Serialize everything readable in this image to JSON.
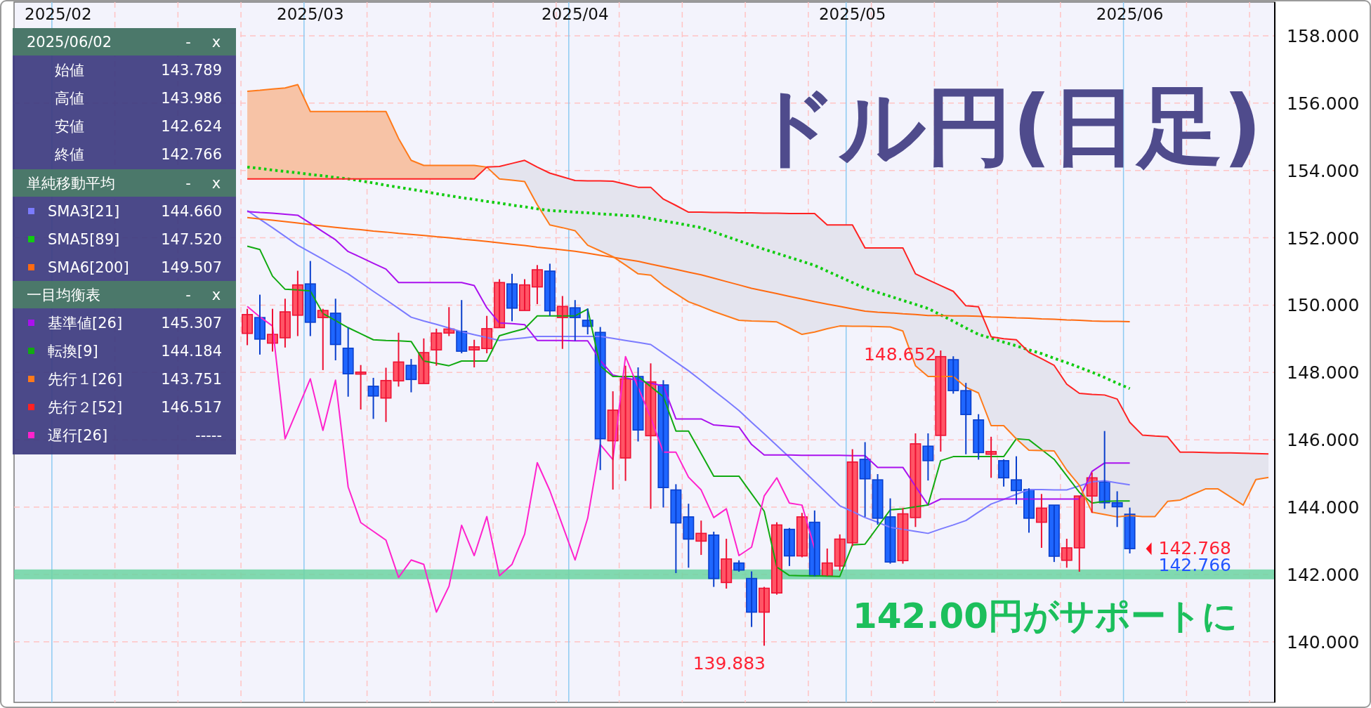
{
  "chart_data": {
    "type": "candlestick",
    "title": "ドル円(日足)",
    "categories": [
      null,
      null,
      null,
      "2025/02",
      null,
      null,
      null,
      null,
      null,
      null,
      null,
      null,
      null,
      null,
      null,
      null,
      null,
      null,
      null,
      null,
      null,
      null,
      null,
      "2025/03",
      null,
      null,
      null,
      null,
      null,
      null,
      null,
      null,
      null,
      null,
      null,
      null,
      null,
      null,
      null,
      null,
      null,
      null,
      null,
      null,
      "2025/04",
      null,
      null,
      null,
      null,
      null,
      null,
      null,
      null,
      null,
      null,
      null,
      null,
      null,
      null,
      null,
      null,
      null,
      null,
      null,
      null,
      null,
      "2025/05",
      null,
      null,
      null,
      null,
      null,
      null,
      null,
      null,
      null,
      null,
      null,
      null,
      null,
      null,
      null,
      null,
      null,
      null,
      null,
      null,
      null,
      "2025/06",
      null,
      null,
      null,
      null,
      null,
      null,
      null,
      null,
      null,
      null,
      null
    ],
    "ohlc": [
      null,
      null,
      null,
      null,
      null,
      null,
      null,
      null,
      null,
      null,
      null,
      null,
      null,
      null,
      null,
      null,
      null,
      null,
      [
        149.16,
        149.89,
        148.81,
        149.72
      ],
      [
        149.63,
        150.31,
        148.53,
        148.99
      ],
      [
        148.87,
        149.89,
        148.62,
        149.13
      ],
      [
        149.03,
        150.19,
        148.74,
        149.8
      ],
      [
        149.7,
        151.02,
        149.08,
        150.6
      ],
      [
        150.63,
        151.31,
        149.08,
        149.49
      ],
      [
        149.63,
        149.89,
        148.07,
        149.84
      ],
      [
        149.76,
        150.19,
        148.36,
        148.83
      ],
      [
        148.72,
        149.33,
        147.28,
        147.96
      ],
      [
        147.95,
        148.22,
        146.9,
        148.01
      ],
      [
        147.59,
        147.84,
        146.62,
        147.3
      ],
      [
        147.24,
        148.14,
        146.53,
        147.76
      ],
      [
        147.75,
        149.18,
        147.58,
        148.31
      ],
      [
        148.21,
        148.4,
        147.41,
        147.79
      ],
      [
        147.67,
        149.01,
        147.67,
        148.59
      ],
      [
        148.67,
        149.3,
        148.2,
        149.17
      ],
      [
        149.17,
        149.94,
        149.08,
        149.29
      ],
      [
        149.22,
        150.15,
        148.57,
        148.63
      ],
      [
        148.67,
        148.97,
        148.15,
        148.76
      ],
      [
        148.71,
        149.68,
        148.57,
        149.3
      ],
      [
        149.33,
        150.77,
        149.33,
        150.67
      ],
      [
        150.63,
        150.93,
        149.52,
        149.91
      ],
      [
        149.84,
        150.77,
        149.84,
        150.6
      ],
      [
        150.54,
        151.19,
        150.03,
        151.05
      ],
      [
        151.01,
        151.23,
        149.68,
        149.83
      ],
      [
        149.63,
        150.27,
        148.7,
        149.96
      ],
      [
        149.92,
        150.15,
        148.94,
        149.63
      ],
      [
        149.55,
        149.9,
        149.13,
        149.37
      ],
      [
        149.19,
        149.35,
        145.1,
        146.03
      ],
      [
        145.97,
        147.44,
        144.52,
        146.88
      ],
      [
        145.46,
        148.2,
        144.78,
        147.81
      ],
      [
        147.88,
        148.15,
        145.95,
        146.29
      ],
      [
        146.12,
        148.27,
        143.95,
        147.72
      ],
      [
        147.63,
        147.77,
        143.99,
        144.58
      ],
      [
        144.51,
        144.68,
        142.04,
        143.53
      ],
      [
        143.71,
        144.1,
        142.2,
        143.05
      ],
      [
        142.99,
        143.6,
        142.58,
        143.22
      ],
      [
        143.17,
        143.27,
        141.63,
        141.88
      ],
      [
        141.76,
        143.06,
        141.58,
        142.46
      ],
      [
        142.34,
        142.42,
        142.08,
        142.13
      ],
      [
        141.88,
        142.09,
        140.44,
        140.88
      ],
      [
        140.88,
        141.63,
        139.883,
        141.59
      ],
      [
        141.45,
        143.55,
        141.4,
        143.47
      ],
      [
        143.34,
        143.38,
        142.25,
        142.55
      ],
      [
        142.55,
        143.83,
        142.51,
        143.71
      ],
      [
        143.55,
        143.9,
        141.95,
        141.95
      ],
      [
        141.95,
        142.77,
        141.95,
        142.34
      ],
      [
        142.25,
        143.19,
        142.11,
        143.05
      ],
      [
        142.94,
        145.72,
        142.84,
        145.34
      ],
      [
        145.42,
        145.93,
        143.71,
        144.84
      ],
      [
        144.81,
        144.98,
        143.48,
        143.67
      ],
      [
        143.71,
        144.26,
        142.32,
        142.37
      ],
      [
        142.41,
        143.97,
        142.32,
        143.8
      ],
      [
        143.69,
        146.19,
        143.41,
        145.88
      ],
      [
        145.81,
        146.19,
        144.79,
        145.38
      ],
      [
        146.13,
        148.652,
        145.65,
        148.47
      ],
      [
        148.38,
        148.48,
        147.37,
        147.46
      ],
      [
        147.46,
        147.69,
        145.57,
        146.75
      ],
      [
        146.59,
        146.76,
        145.41,
        145.62
      ],
      [
        145.57,
        146.09,
        144.87,
        145.65
      ],
      [
        145.38,
        145.42,
        144.61,
        144.87
      ],
      [
        144.81,
        145.51,
        144.08,
        144.49
      ],
      [
        144.52,
        144.56,
        143.24,
        143.67
      ],
      [
        143.55,
        144.39,
        142.79,
        143.97
      ],
      [
        144.06,
        144.06,
        142.37,
        142.54
      ],
      [
        142.42,
        143.06,
        142.2,
        142.79
      ],
      [
        142.79,
        144.33,
        142.08,
        144.33
      ],
      [
        144.33,
        145.03,
        143.83,
        144.87
      ],
      [
        144.75,
        146.26,
        143.95,
        144.13
      ],
      [
        144.13,
        144.47,
        143.41,
        144.01
      ],
      [
        143.789,
        143.986,
        142.624,
        142.766
      ],
      null,
      null,
      null,
      null,
      null,
      null,
      null,
      null,
      null,
      null,
      null
    ],
    "series": [
      {
        "name": "SMA3[21]",
        "color": "#7b7bff",
        "type": "line",
        "values": [
          null,
          null,
          null,
          null,
          null,
          null,
          null,
          null,
          null,
          null,
          null,
          null,
          null,
          null,
          null,
          null,
          null,
          null,
          152.81,
          152.55,
          152.3,
          152.04,
          151.78,
          151.57,
          151.36,
          151.14,
          150.93,
          150.67,
          150.41,
          150.16,
          149.9,
          149.64,
          149.53,
          149.43,
          149.32,
          149.21,
          149.12,
          149.04,
          148.95,
          148.99,
          149.03,
          149.07,
          149.07,
          149.07,
          149.07,
          149.07,
          149.07,
          149.01,
          148.95,
          148.89,
          148.83,
          148.57,
          148.31,
          148.05,
          147.76,
          147.46,
          147.17,
          146.87,
          146.52,
          146.18,
          145.83,
          145.48,
          145.12,
          144.76,
          144.4,
          144.04,
          143.87,
          143.69,
          143.55,
          143.4,
          143.34,
          143.28,
          143.22,
          143.35,
          143.47,
          143.6,
          143.85,
          144.09,
          144.23,
          144.38,
          144.52,
          144.52,
          144.51,
          144.51,
          144.63,
          144.75,
          144.78,
          144.72,
          144.66,
          null,
          null,
          null,
          null,
          null,
          null,
          null,
          null,
          null,
          null,
          null
        ]
      },
      {
        "name": "SMA5[89]",
        "color": "#11cc11",
        "type": "line",
        "line_style": "dotted",
        "values": [
          null,
          null,
          null,
          null,
          null,
          null,
          null,
          null,
          null,
          null,
          null,
          null,
          null,
          null,
          null,
          null,
          null,
          null,
          154.1,
          154.06,
          154.01,
          153.97,
          153.93,
          153.88,
          153.84,
          153.79,
          153.75,
          153.69,
          153.63,
          153.56,
          153.5,
          153.44,
          153.38,
          153.31,
          153.25,
          153.19,
          153.14,
          153.08,
          153.03,
          152.97,
          152.92,
          152.86,
          152.81,
          152.79,
          152.76,
          152.74,
          152.71,
          152.69,
          152.66,
          152.64,
          152.57,
          152.5,
          152.44,
          152.37,
          152.3,
          152.17,
          152.04,
          151.91,
          151.78,
          151.66,
          151.54,
          151.42,
          151.3,
          151.18,
          151.01,
          150.84,
          150.67,
          150.5,
          150.38,
          150.26,
          150.14,
          150.02,
          149.9,
          149.71,
          149.52,
          149.32,
          149.13,
          149.02,
          148.9,
          148.79,
          148.67,
          148.56,
          148.42,
          148.29,
          148.15,
          148.01,
          147.85,
          147.68,
          147.52,
          null,
          null,
          null,
          null,
          null,
          null,
          null,
          null,
          null,
          null,
          null
        ]
      },
      {
        "name": "SMA6[200]",
        "color": "#ff6a10",
        "type": "line",
        "values": [
          null,
          null,
          null,
          null,
          null,
          null,
          null,
          null,
          null,
          null,
          null,
          null,
          null,
          null,
          null,
          null,
          null,
          null,
          152.6,
          152.56,
          152.52,
          152.48,
          152.44,
          152.39,
          152.35,
          152.31,
          152.27,
          152.24,
          152.2,
          152.17,
          152.13,
          152.1,
          152.07,
          152.03,
          152.0,
          151.96,
          151.93,
          151.89,
          151.85,
          151.81,
          151.77,
          151.72,
          151.68,
          151.64,
          151.6,
          151.54,
          151.48,
          151.42,
          151.36,
          151.3,
          151.22,
          151.14,
          151.06,
          150.98,
          150.9,
          150.8,
          150.7,
          150.6,
          150.5,
          150.42,
          150.34,
          150.26,
          150.18,
          150.1,
          150.03,
          149.96,
          149.89,
          149.82,
          149.79,
          149.77,
          149.74,
          149.72,
          149.69,
          149.69,
          149.68,
          149.68,
          149.67,
          149.65,
          149.64,
          149.62,
          149.61,
          149.59,
          149.58,
          149.56,
          149.55,
          149.53,
          149.52,
          149.52,
          149.51,
          null,
          null,
          null,
          null,
          null,
          null,
          null,
          null,
          null,
          null,
          null
        ]
      },
      {
        "name": "基準値[26]",
        "color": "#aa11ee",
        "type": "line",
        "values": [
          null,
          null,
          null,
          null,
          null,
          null,
          null,
          null,
          null,
          null,
          null,
          null,
          null,
          null,
          null,
          null,
          null,
          null,
          152.78,
          152.75,
          152.73,
          152.7,
          152.67,
          152.43,
          152.18,
          151.94,
          151.59,
          151.42,
          151.24,
          151.07,
          150.67,
          150.67,
          150.67,
          150.67,
          150.67,
          150.67,
          150.58,
          149.92,
          149.47,
          149.45,
          149.42,
          148.95,
          148.95,
          148.95,
          148.94,
          148.94,
          148.36,
          147.92,
          147.84,
          147.76,
          147.68,
          147.6,
          146.62,
          146.62,
          146.62,
          146.44,
          146.41,
          146.38,
          145.86,
          145.55,
          145.55,
          145.55,
          145.54,
          145.54,
          145.54,
          145.54,
          145.53,
          145.53,
          145.18,
          145.18,
          145.18,
          144.62,
          144.06,
          144.24,
          144.24,
          144.24,
          144.24,
          144.24,
          144.24,
          144.24,
          144.24,
          144.24,
          144.24,
          144.24,
          144.24,
          145.06,
          145.31,
          145.31,
          145.31,
          null,
          null,
          null,
          null,
          null,
          null,
          null,
          null,
          null,
          null,
          null
        ]
      },
      {
        "name": "転換[9]",
        "color": "#11aa11",
        "type": "line",
        "values": [
          null,
          null,
          null,
          null,
          null,
          null,
          null,
          null,
          null,
          null,
          null,
          null,
          null,
          null,
          null,
          null,
          null,
          null,
          151.75,
          151.65,
          150.86,
          150.47,
          150.45,
          150.42,
          149.75,
          149.54,
          149.33,
          149.15,
          148.97,
          148.95,
          148.94,
          148.92,
          148.34,
          148.27,
          148.2,
          148.34,
          148.34,
          148.34,
          149.09,
          149.2,
          149.3,
          149.68,
          149.68,
          149.68,
          149.68,
          149.88,
          148.19,
          147.88,
          147.88,
          147.88,
          147.58,
          147.28,
          146.26,
          146.26,
          145.59,
          144.92,
          144.92,
          144.92,
          144.4,
          143.88,
          142.22,
          141.97,
          141.96,
          141.96,
          141.95,
          141.94,
          142.88,
          142.9,
          143.41,
          143.92,
          143.95,
          144.01,
          144.06,
          145.38,
          145.5,
          145.5,
          145.5,
          145.5,
          145.5,
          146.03,
          146.0,
          145.71,
          145.42,
          144.93,
          144.44,
          144.12,
          144.17,
          144.18,
          144.18,
          null,
          null,
          null,
          null,
          null,
          null,
          null,
          null,
          null,
          null,
          null
        ]
      },
      {
        "name": "先行１[26]",
        "color": "#ff7a1a",
        "type": "line",
        "values": [
          null,
          null,
          null,
          null,
          null,
          null,
          null,
          null,
          null,
          null,
          null,
          null,
          null,
          null,
          null,
          null,
          null,
          null,
          156.35,
          156.38,
          156.42,
          156.45,
          156.55,
          155.75,
          155.75,
          155.75,
          155.75,
          155.75,
          155.75,
          155.75,
          154.95,
          154.3,
          154.15,
          154.15,
          154.15,
          154.15,
          154.15,
          154.1,
          153.75,
          153.71,
          153.67,
          152.98,
          152.38,
          152.3,
          152.21,
          151.78,
          151.61,
          151.44,
          151.19,
          150.93,
          150.89,
          150.58,
          150.34,
          150.1,
          149.96,
          149.81,
          149.68,
          149.55,
          149.53,
          149.52,
          149.5,
          149.32,
          149.13,
          149.2,
          149.3,
          149.38,
          149.37,
          149.37,
          149.36,
          149.35,
          149.23,
          148.2,
          147.88,
          147.88,
          147.88,
          147.56,
          147.39,
          146.42,
          146.42,
          146.03,
          145.69,
          145.68,
          145.67,
          145.1,
          144.65,
          143.85,
          143.78,
          143.71,
          143.75,
          143.72,
          143.72,
          144.17,
          144.21,
          144.38,
          144.54,
          144.54,
          144.3,
          144.06,
          144.82,
          144.88
        ]
      },
      {
        "name": "先行２[52]",
        "color": "#ff2222",
        "type": "line",
        "values": [
          null,
          null,
          null,
          null,
          null,
          null,
          null,
          null,
          null,
          null,
          null,
          null,
          null,
          null,
          null,
          null,
          null,
          null,
          153.75,
          153.75,
          153.75,
          153.75,
          153.75,
          153.75,
          153.75,
          153.75,
          153.75,
          153.75,
          153.75,
          153.75,
          153.75,
          153.75,
          153.75,
          153.75,
          153.75,
          153.75,
          153.75,
          154.1,
          154.12,
          154.21,
          154.3,
          154.1,
          153.92,
          153.81,
          153.7,
          153.69,
          153.69,
          153.68,
          153.59,
          153.5,
          153.5,
          153.15,
          152.96,
          152.76,
          152.76,
          152.75,
          152.75,
          152.74,
          152.74,
          152.73,
          152.73,
          152.72,
          152.72,
          152.72,
          152.38,
          152.38,
          152.38,
          151.7,
          151.7,
          151.7,
          151.7,
          150.93,
          150.75,
          150.58,
          150.41,
          149.98,
          149.95,
          149.06,
          149.0,
          148.97,
          148.6,
          148.41,
          148.21,
          147.65,
          147.38,
          147.35,
          147.33,
          147.21,
          146.52,
          146.14,
          146.11,
          146.09,
          145.63,
          145.63,
          145.62,
          145.61,
          145.61,
          145.6,
          145.59,
          145.58
        ]
      },
      {
        "name": "遅行[26]",
        "color": "#ff22cc",
        "type": "line",
        "values": [
          null,
          null,
          null,
          null,
          null,
          null,
          null,
          null,
          null,
          null,
          null,
          null,
          null,
          null,
          null,
          null,
          null,
          null,
          149.96,
          149.65,
          149.38,
          146.03,
          146.92,
          147.81,
          146.28,
          147.77,
          144.6,
          143.54,
          143.28,
          143.02,
          141.91,
          142.43,
          142.3,
          140.88,
          141.65,
          143.46,
          142.56,
          143.72,
          141.96,
          142.3,
          143.2,
          145.32,
          144.49,
          143.46,
          142.43,
          143.67,
          145.86,
          145.41,
          148.47,
          147.56,
          146.66,
          145.63,
          145.63,
          144.89,
          144.51,
          143.69,
          143.95,
          142.56,
          142.81,
          144.33,
          144.87,
          144.12,
          144.06,
          142.77,
          null,
          null,
          null,
          null,
          null,
          null,
          null,
          null,
          null,
          null,
          null,
          null,
          null,
          null,
          null,
          null,
          null,
          null,
          null,
          null,
          null,
          null,
          null,
          null,
          null,
          null,
          null,
          null,
          null,
          null,
          null,
          null,
          null,
          null,
          null,
          null
        ]
      }
    ],
    "ylim": [
      138.2,
      159.0
    ],
    "yticks": [
      {
        "value": 140,
        "label": "140.000"
      },
      {
        "value": 142,
        "label": "142.000"
      },
      {
        "value": 144,
        "label": "144.000"
      },
      {
        "value": 146,
        "label": "146.000"
      },
      {
        "value": 148,
        "label": "148.000"
      },
      {
        "value": 150,
        "label": "150.000"
      },
      {
        "value": 152,
        "label": "152.000"
      },
      {
        "value": 154,
        "label": "154.000"
      },
      {
        "value": 156,
        "label": "156.000"
      },
      {
        "value": 158,
        "label": "158.000"
      }
    ],
    "grid": true,
    "legend": "top left",
    "ref_lines": [
      {
        "axis": "y",
        "value": 142,
        "color": "#6dd5a3"
      }
    ],
    "annotations": [
      "2025/06/02",
      "-",
      "x",
      "始値",
      "143.789",
      "高値",
      "143.986",
      "安値",
      "142.624",
      "終値",
      "142.766",
      "単純移動平均",
      "-",
      "x",
      "144.660",
      "147.520",
      "149.507",
      "一目均衡表",
      "-",
      "x",
      "145.307",
      "144.184",
      "143.751",
      "146.517",
      "-----",
      "142.768",
      "142.766",
      "148.652",
      "139.883",
      {
        "text": "142.00円がサポートに",
        "y": 142
      }
    ]
  }
}
